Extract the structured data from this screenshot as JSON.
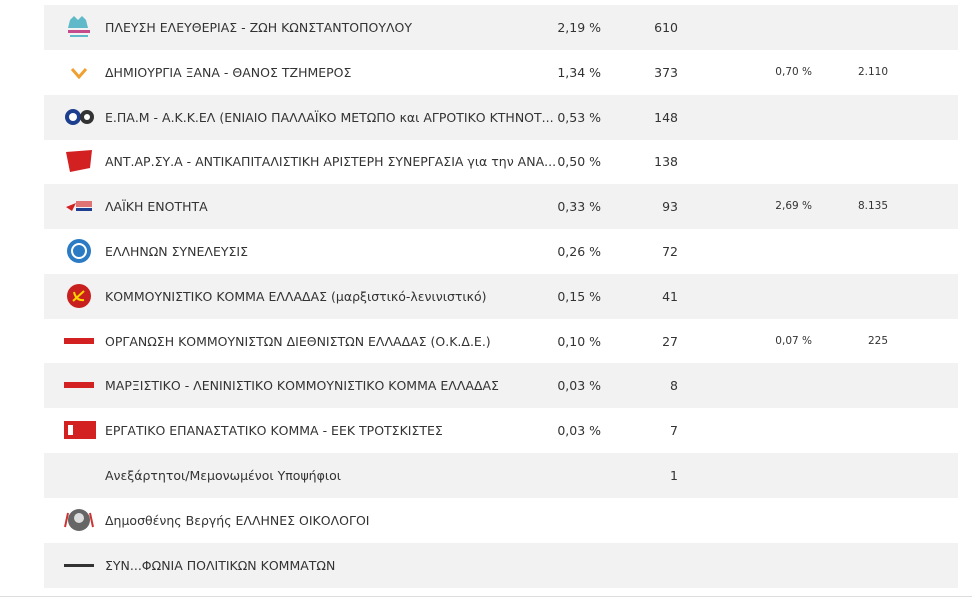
{
  "table": {
    "rows": [
      {
        "name": "ΠΛΕΥΣΗ ΕΛΕΥΘΕΡΙΑΣ - ΖΩΗ ΚΩΝΣΤΑΝΤΟΠΟΥΛΟΥ",
        "pct": "2,19 %",
        "votes": "610"
      },
      {
        "name": "ΔΗΜΙΟΥΡΓΙΑ ΞΑΝΑ - ΘΑΝΟΣ ΤΖΗΜΕΡΟΣ",
        "pct": "1,34 %",
        "votes": "373",
        "prev_pct": "0,70 %",
        "prev_votes": "2.110"
      },
      {
        "name": "Ε.ΠΑ.Μ - Α.Κ.Κ.ΕΛ (ΕΝΙΑΙΟ ΠΑΛΛΑΪΚΟ ΜΕΤΩΠΟ και ΑΓΡΟΤΙΚΟ ΚΤΗΝΟΤ...",
        "pct": "0,53 %",
        "votes": "148"
      },
      {
        "name": "ΑΝΤ.ΑΡ.ΣΥ.Α - ΑΝΤΙΚΑΠΙΤΑΛΙΣΤΙΚΗ ΑΡΙΣΤΕΡΗ ΣΥΝΕΡΓΑΣΙΑ για την ΑΝΑ...",
        "pct": "0,50 %",
        "votes": "138"
      },
      {
        "name": "ΛΑΪΚΗ ΕΝΟΤΗΤΑ",
        "pct": "0,33 %",
        "votes": "93",
        "prev_pct": "2,69 %",
        "prev_votes": "8.135"
      },
      {
        "name": "ΕΛΛΗΝΩΝ ΣΥΝΕΛΕΥΣΙΣ",
        "pct": "0,26 %",
        "votes": "72"
      },
      {
        "name": "ΚΟΜΜΟΥΝΙΣΤΙΚΟ ΚΟΜΜΑ ΕΛΛΑΔΑΣ (μαρξιστικό-λενινιστικό)",
        "pct": "0,15 %",
        "votes": "41"
      },
      {
        "name": "ΟΡΓΑΝΩΣΗ ΚΟΜΜΟΥΝΙΣΤΩΝ ΔΙΕΘΝΙΣΤΩΝ ΕΛΛΑΔΑΣ (Ο.Κ.Δ.Ε.)",
        "pct": "0,10 %",
        "votes": "27",
        "prev_pct": "0,07 %",
        "prev_votes": "225"
      },
      {
        "name": "ΜΑΡΞΙΣΤΙΚΟ - ΛΕΝΙΝΙΣΤΙΚΟ ΚΟΜΜΟΥΝΙΣΤΙΚΟ ΚΟΜΜΑ ΕΛΛΑΔΑΣ",
        "pct": "0,03 %",
        "votes": "8"
      },
      {
        "name": "ΕΡΓΑΤΙΚΟ ΕΠΑΝΑΣΤΑΤΙΚΟ ΚΟΜΜΑ - ΕΕΚ ΤΡΟΤΣΚΙΣΤΕΣ",
        "pct": "0,03 %",
        "votes": "7"
      },
      {
        "name": "Ανεξάρτητοι/Μεμονωμένοι Υποψήφιοι",
        "votes": "1"
      },
      {
        "name": "Δημοσθένης Βεργής ΕΛΛΗΝΕΣ ΟΙΚΟΛΟΓΟΙ"
      },
      {
        "name": "ΣΥΝ...ΦΩΝΙΑ ΠΟΛΙΤΙΚΩΝ ΚΟΜΜΑΤΩΝ"
      }
    ]
  }
}
